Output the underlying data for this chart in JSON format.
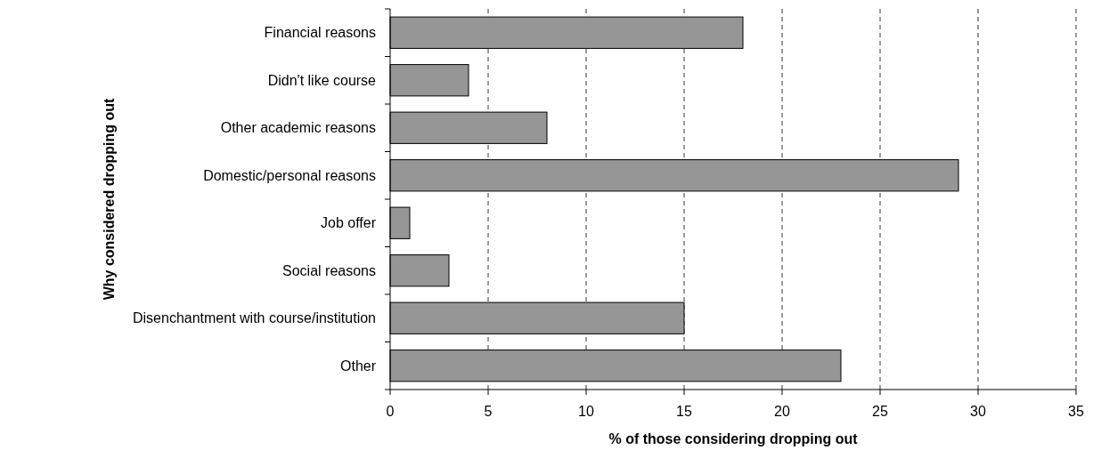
{
  "chart_data": {
    "type": "bar",
    "orientation": "horizontal",
    "categories": [
      "Financial reasons",
      "Didn't like course",
      "Other academic reasons",
      "Domestic/personal reasons",
      "Job offer",
      "Social reasons",
      "Disenchantment with course/institution",
      "Other"
    ],
    "values": [
      18,
      4,
      8,
      29,
      1,
      3,
      15,
      23
    ],
    "color": "#969696",
    "xlim": [
      0,
      35
    ],
    "xticks": [
      0,
      5,
      10,
      15,
      20,
      25,
      30,
      35
    ],
    "xlabel": "% of those considering dropping out",
    "ylabel": "Why considered dropping out",
    "grid": "x"
  }
}
